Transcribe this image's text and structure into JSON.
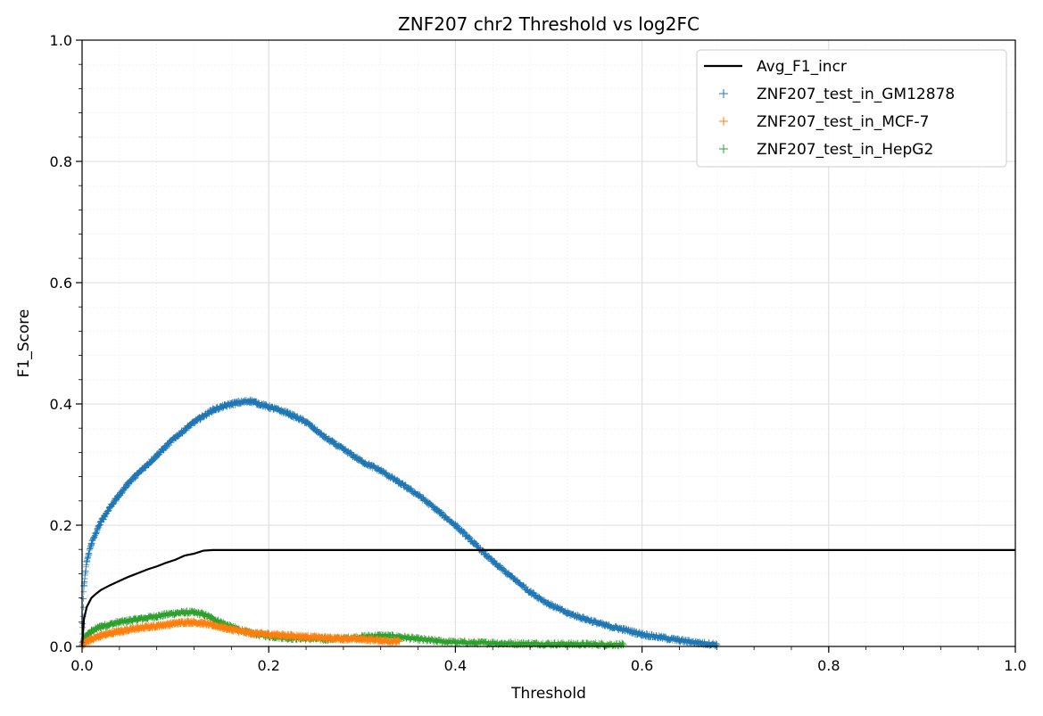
{
  "chart_data": {
    "type": "scatter",
    "title": "ZNF207 chr2 Threshold vs log2FC",
    "xlabel": "Threshold",
    "ylabel": "F1_Score",
    "xlim": [
      0,
      1
    ],
    "ylim": [
      0,
      1
    ],
    "xticks": [
      "0.0",
      "0.2",
      "0.4",
      "0.6",
      "0.8",
      "1.0"
    ],
    "yticks": [
      "0.0",
      "0.2",
      "0.4",
      "0.6",
      "0.8",
      "1.0"
    ],
    "grid": true,
    "minor_grid": true,
    "legend_position": "top-right",
    "line_series": {
      "name": "Avg_F1_incr",
      "color": "#000000",
      "x": [
        0,
        0.002,
        0.005,
        0.01,
        0.015,
        0.02,
        0.03,
        0.04,
        0.05,
        0.06,
        0.07,
        0.08,
        0.09,
        0.1,
        0.11,
        0.12,
        0.13,
        0.14,
        0.2,
        0.3,
        0.4,
        0.5,
        0.6,
        0.7,
        0.8,
        0.9,
        1.0
      ],
      "y": [
        0.0,
        0.045,
        0.065,
        0.08,
        0.087,
        0.093,
        0.101,
        0.108,
        0.115,
        0.121,
        0.127,
        0.132,
        0.138,
        0.143,
        0.15,
        0.153,
        0.158,
        0.159,
        0.159,
        0.159,
        0.159,
        0.159,
        0.159,
        0.159,
        0.159,
        0.159,
        0.159
      ]
    },
    "series": [
      {
        "name": "ZNF207_test_in_GM12878",
        "color": "#1f77b4",
        "marker": "+",
        "x": [
          0.0,
          0.002,
          0.005,
          0.01,
          0.02,
          0.03,
          0.04,
          0.05,
          0.06,
          0.08,
          0.1,
          0.12,
          0.14,
          0.16,
          0.18,
          0.2,
          0.22,
          0.24,
          0.26,
          0.28,
          0.3,
          0.32,
          0.34,
          0.36,
          0.38,
          0.4,
          0.42,
          0.44,
          0.46,
          0.48,
          0.5,
          0.52,
          0.54,
          0.56,
          0.58,
          0.6,
          0.62,
          0.64,
          0.66,
          0.68
        ],
        "y": [
          0.0,
          0.1,
          0.14,
          0.17,
          0.205,
          0.23,
          0.25,
          0.27,
          0.285,
          0.315,
          0.345,
          0.37,
          0.39,
          0.4,
          0.405,
          0.395,
          0.385,
          0.37,
          0.345,
          0.325,
          0.305,
          0.29,
          0.27,
          0.25,
          0.225,
          0.2,
          0.17,
          0.14,
          0.115,
          0.09,
          0.07,
          0.055,
          0.045,
          0.035,
          0.028,
          0.02,
          0.015,
          0.01,
          0.006,
          0.003
        ]
      },
      {
        "name": "ZNF207_test_in_MCF-7",
        "color": "#ff7f0e",
        "marker": "+",
        "x": [
          0.0,
          0.002,
          0.005,
          0.01,
          0.02,
          0.04,
          0.06,
          0.08,
          0.1,
          0.11,
          0.12,
          0.13,
          0.14,
          0.16,
          0.18,
          0.2,
          0.22,
          0.24,
          0.26,
          0.28,
          0.3,
          0.32,
          0.34
        ],
        "y": [
          0.0,
          0.005,
          0.008,
          0.012,
          0.018,
          0.025,
          0.03,
          0.034,
          0.038,
          0.04,
          0.04,
          0.038,
          0.035,
          0.028,
          0.022,
          0.02,
          0.018,
          0.016,
          0.014,
          0.013,
          0.012,
          0.01,
          0.008
        ]
      },
      {
        "name": "ZNF207_test_in_HepG2",
        "color": "#2ca02c",
        "marker": "+",
        "x": [
          0.0,
          0.002,
          0.005,
          0.01,
          0.02,
          0.04,
          0.06,
          0.08,
          0.1,
          0.11,
          0.12,
          0.13,
          0.14,
          0.16,
          0.18,
          0.2,
          0.22,
          0.24,
          0.26,
          0.28,
          0.3,
          0.32,
          0.34,
          0.36,
          0.38,
          0.4,
          0.42,
          0.44,
          0.45,
          0.58
        ],
        "y": [
          0.0,
          0.012,
          0.018,
          0.025,
          0.033,
          0.04,
          0.045,
          0.05,
          0.055,
          0.056,
          0.056,
          0.053,
          0.046,
          0.032,
          0.022,
          0.017,
          0.014,
          0.013,
          0.012,
          0.013,
          0.016,
          0.018,
          0.016,
          0.012,
          0.009,
          0.007,
          0.006,
          0.006,
          0.005,
          0.003
        ]
      }
    ]
  }
}
